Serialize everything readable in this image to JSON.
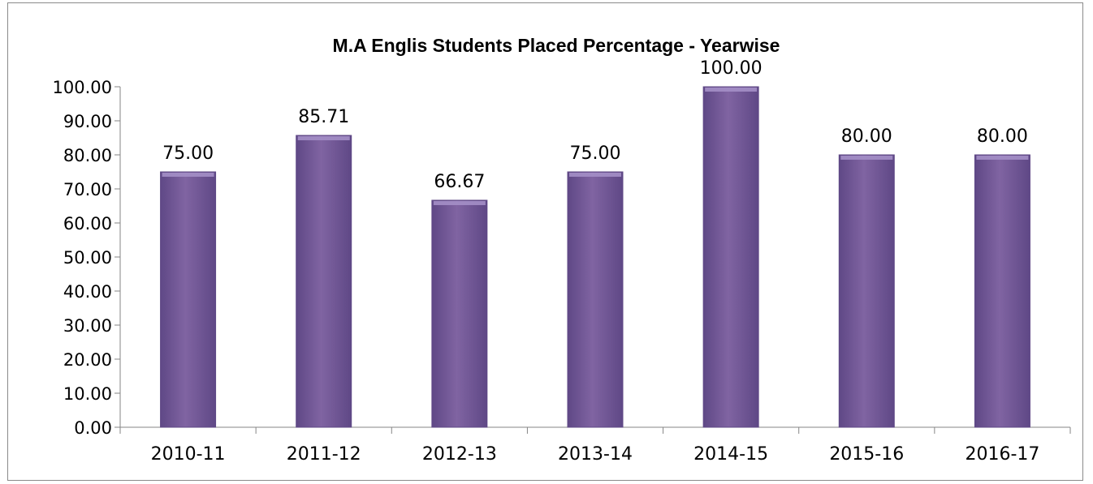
{
  "chart_data": {
    "type": "bar",
    "title": "M.A Englis  Students Placed Percentage - Yearwise",
    "xlabel": "",
    "ylabel": "",
    "categories": [
      "2010-11",
      "2011-12",
      "2012-13",
      "2013-14",
      "2014-15",
      "2015-16",
      "2016-17"
    ],
    "values": [
      75.0,
      85.71,
      66.67,
      75.0,
      100.0,
      80.0,
      80.0
    ],
    "data_labels": [
      "75.00",
      "85.71",
      "66.67",
      "75.00",
      "100.00",
      "80.00",
      "80.00"
    ],
    "ylim": [
      0,
      100
    ],
    "yticks": [
      "0.00",
      "10.00",
      "20.00",
      "30.00",
      "40.00",
      "50.00",
      "60.00",
      "70.00",
      "80.00",
      "90.00",
      "100.00"
    ],
    "grid": false,
    "legend": "none",
    "colors": {
      "bar": "#8064a2",
      "bar_dark": "#5f4886",
      "bar_light": "#a48fc6",
      "axis": "#868686"
    }
  }
}
